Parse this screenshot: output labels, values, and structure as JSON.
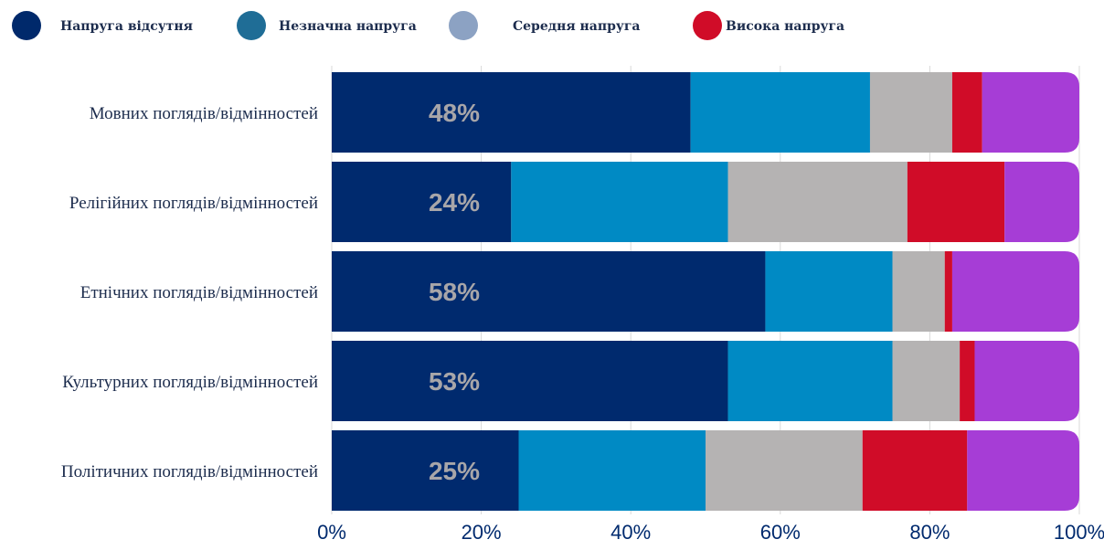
{
  "chart_data": {
    "type": "bar",
    "orientation": "horizontal",
    "stacked": true,
    "categories": [
      "Мовних поглядів/відмінностей",
      "Релігійних поглядів/відмінностей",
      "Етнічних поглядів/відмінностей",
      "Культурних поглядів/відмінностей",
      "Політичних поглядів/відмінностей"
    ],
    "series": [
      {
        "name": "Напруга відсутня",
        "color": "#002a6e",
        "legend_color": "#00296b",
        "values": [
          48,
          24,
          58,
          53,
          25
        ]
      },
      {
        "name": "Незначна напруга",
        "color": "#008ac4",
        "legend_color": "#1f6d96",
        "values": [
          24,
          29,
          17,
          22,
          25
        ]
      },
      {
        "name": "Середня напруга",
        "color": "#b5b3b3",
        "legend_color": "#8ca2c3",
        "values": [
          11,
          24,
          7,
          9,
          21
        ]
      },
      {
        "name": "Висока напруга",
        "color": "#d00c28",
        "legend_color": "#d00c28",
        "values": [
          4,
          13,
          1,
          2,
          14
        ]
      },
      {
        "name": "",
        "color": "#a63dd6",
        "values": [
          13,
          10,
          17,
          14,
          15
        ]
      }
    ],
    "data_labels": [
      "48%",
      "24%",
      "58%",
      "53%",
      "25%"
    ],
    "data_label_color": "#a8a6a9",
    "x_ticks": [
      "0%",
      "20%",
      "40%",
      "60%",
      "80%",
      "100%"
    ],
    "xlim": [
      0,
      100
    ],
    "grid": "vertical",
    "legend_position": "top-left",
    "category_label_color": "#1c2c4d",
    "tick_color": "#002a6e",
    "legend_text_color": "#1c2c4d"
  }
}
